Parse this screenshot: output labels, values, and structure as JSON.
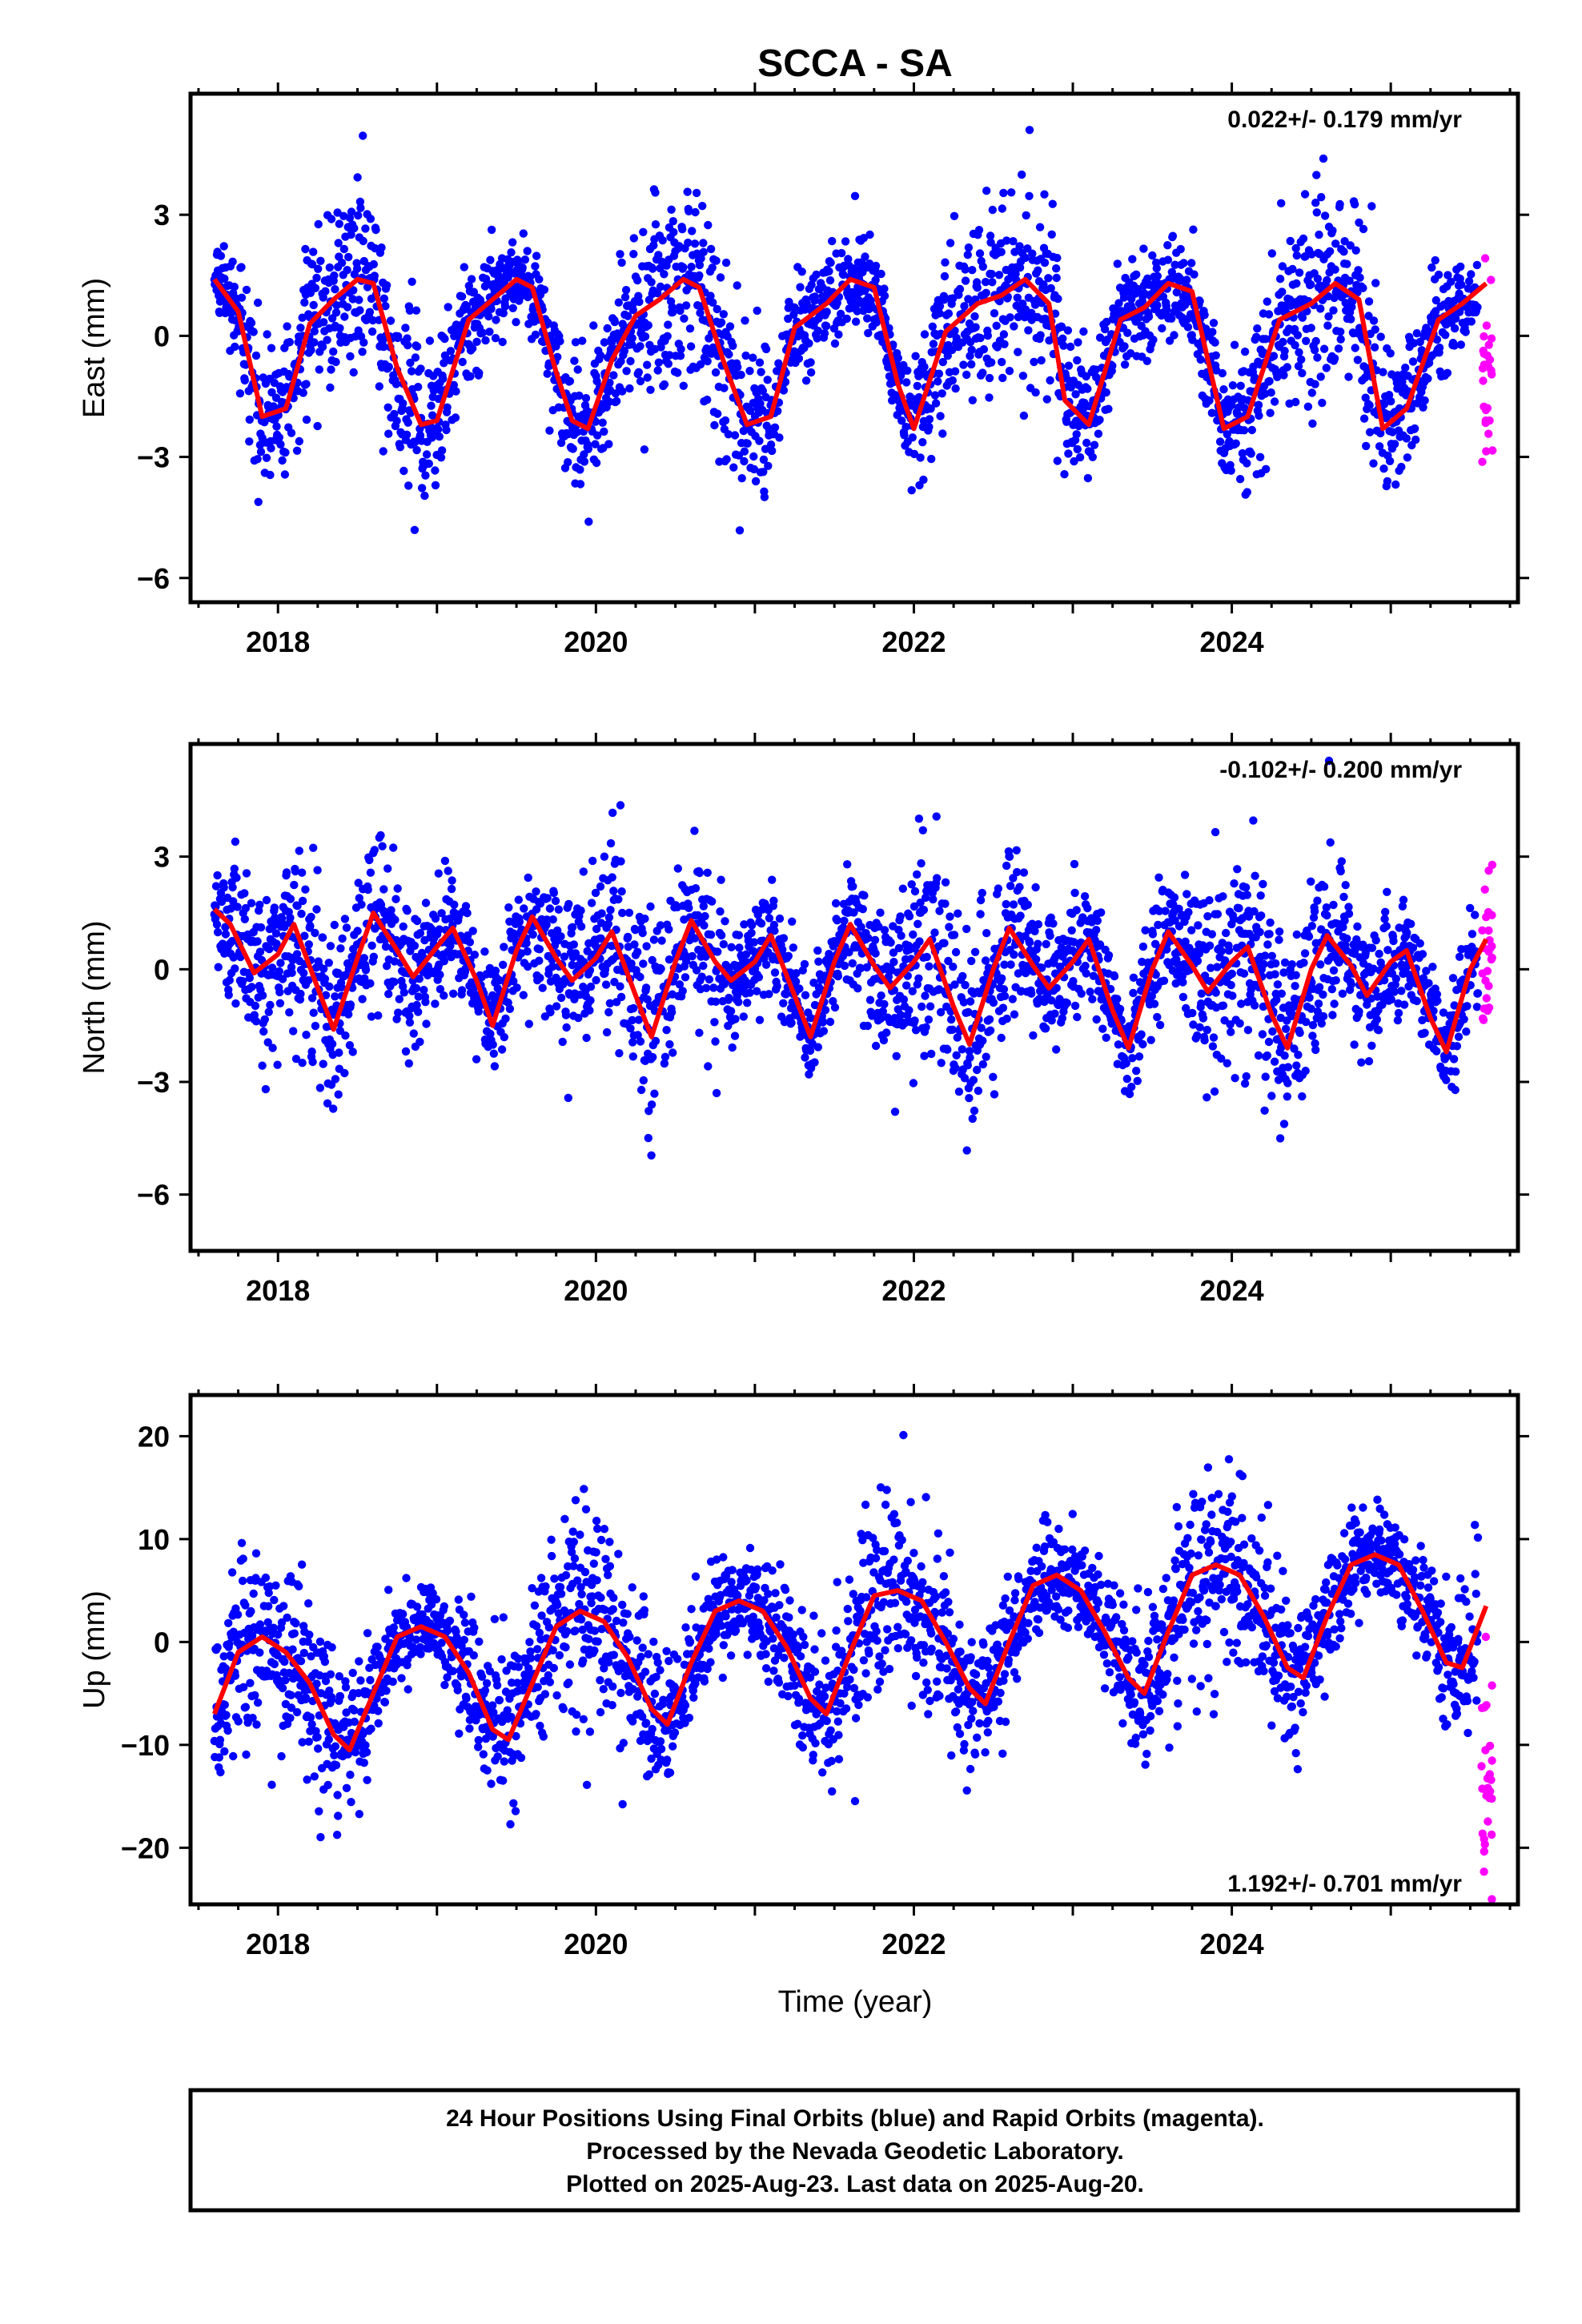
{
  "title": "SCCA - SA",
  "xlabel": "Time (year)",
  "footer": [
    "24 Hour Positions Using Final Orbits (blue) and Rapid Orbits (magenta).",
    "Processed by the Nevada Geodetic Laboratory.",
    "Plotted on 2025-Aug-23. Last data on 2025-Aug-20."
  ],
  "colors": {
    "final": "#0000ff",
    "rapid": "#ff00ff",
    "model": "#ff0000"
  },
  "chart_data": [
    {
      "type": "scatter",
      "ylabel": "East (mm)",
      "rate_label": "0.022+/- 0.179 mm/yr",
      "rate_position": "top-right",
      "xlim": [
        2017.45,
        2025.8
      ],
      "ylim": [
        -6.6,
        6.0
      ],
      "xticks": [
        2018,
        2020,
        2022,
        2024
      ],
      "xtick_labels": [
        "2018",
        "2020",
        "2022",
        "2024"
      ],
      "yticks": [
        -6,
        -3,
        0,
        3
      ],
      "ytick_labels": [
        "−6",
        "−3",
        "0",
        "3"
      ],
      "final_range": [
        2017.6,
        2025.55
      ],
      "rapid_range": [
        2025.57,
        2025.64
      ],
      "model": {
        "x": [
          2017.6,
          2017.75,
          2017.9,
          2018.05,
          2018.2,
          2018.35,
          2018.5,
          2018.6,
          2018.75,
          2018.9,
          2019.0,
          2019.2,
          2019.35,
          2019.5,
          2019.6,
          2019.75,
          2019.85,
          2019.95,
          2020.1,
          2020.25,
          2020.4,
          2020.55,
          2020.65,
          2020.8,
          2020.95,
          2021.1,
          2021.25,
          2021.45,
          2021.6,
          2021.75,
          2021.9,
          2022.0,
          2022.2,
          2022.4,
          2022.55,
          2022.7,
          2022.85,
          2022.95,
          2023.1,
          2023.3,
          2023.45,
          2023.6,
          2023.75,
          2023.95,
          2024.1,
          2024.3,
          2024.5,
          2024.65,
          2024.8,
          2024.95,
          2025.1,
          2025.3,
          2025.45,
          2025.6
        ],
        "y": [
          1.4,
          0.6,
          -2.0,
          -1.8,
          0.3,
          0.9,
          1.4,
          1.3,
          -0.8,
          -2.2,
          -2.1,
          0.4,
          0.9,
          1.4,
          1.2,
          -0.9,
          -2.1,
          -2.3,
          -0.6,
          0.5,
          0.9,
          1.4,
          1.2,
          -0.6,
          -2.2,
          -2.0,
          0.2,
          0.8,
          1.4,
          1.2,
          -1.2,
          -2.3,
          0.1,
          0.8,
          1.0,
          1.4,
          0.8,
          -1.6,
          -2.2,
          0.4,
          0.7,
          1.3,
          1.1,
          -2.3,
          -2.0,
          0.4,
          0.8,
          1.3,
          0.9,
          -2.3,
          -1.8,
          0.4,
          0.8,
          1.3
        ]
      },
      "noise_sd": 1.05,
      "trend": 0.022
    },
    {
      "type": "scatter",
      "ylabel": "North (mm)",
      "rate_label": "-0.102+/- 0.200 mm/yr",
      "rate_position": "top-right",
      "xlim": [
        2017.45,
        2025.8
      ],
      "ylim": [
        -7.5,
        6.0
      ],
      "xticks": [
        2018,
        2020,
        2022,
        2024
      ],
      "xtick_labels": [
        "2018",
        "2020",
        "2022",
        "2024"
      ],
      "yticks": [
        -6,
        -3,
        0,
        3
      ],
      "ytick_labels": [
        "−6",
        "−3",
        "0",
        "3"
      ],
      "final_range": [
        2017.6,
        2025.55
      ],
      "rapid_range": [
        2025.57,
        2025.64
      ],
      "model": {
        "x": [
          2017.6,
          2017.7,
          2017.85,
          2018.0,
          2018.1,
          2018.25,
          2018.35,
          2018.5,
          2018.6,
          2018.75,
          2018.85,
          2019.0,
          2019.1,
          2019.25,
          2019.35,
          2019.5,
          2019.6,
          2019.75,
          2019.85,
          2020.0,
          2020.1,
          2020.25,
          2020.35,
          2020.5,
          2020.6,
          2020.75,
          2020.85,
          2021.0,
          2021.1,
          2021.25,
          2021.35,
          2021.5,
          2021.6,
          2021.75,
          2021.85,
          2022.0,
          2022.1,
          2022.25,
          2022.35,
          2022.5,
          2022.6,
          2022.75,
          2022.85,
          2023.0,
          2023.1,
          2023.25,
          2023.35,
          2023.5,
          2023.6,
          2023.75,
          2023.85,
          2024.0,
          2024.1,
          2024.25,
          2024.35,
          2024.5,
          2024.6,
          2024.75,
          2024.85,
          2025.0,
          2025.1,
          2025.25,
          2025.35,
          2025.5,
          2025.6
        ],
        "y": [
          1.6,
          1.2,
          -0.1,
          0.4,
          1.2,
          -0.5,
          -1.6,
          0.3,
          1.5,
          0.5,
          -0.2,
          0.6,
          1.1,
          -0.3,
          -1.5,
          0.5,
          1.4,
          0.3,
          -0.3,
          0.3,
          1.0,
          -0.7,
          -1.8,
          0.2,
          1.3,
          0.2,
          -0.3,
          0.2,
          0.9,
          -0.7,
          -1.8,
          0.2,
          1.2,
          0.1,
          -0.5,
          0.2,
          0.8,
          -1.0,
          -2.0,
          0.0,
          1.1,
          0.1,
          -0.5,
          0.2,
          0.8,
          -1.1,
          -2.1,
          0.0,
          1.0,
          0.1,
          -0.6,
          0.2,
          0.6,
          -1.2,
          -2.1,
          0.0,
          0.9,
          0.1,
          -0.7,
          0.2,
          0.5,
          -1.3,
          -2.2,
          0.0,
          0.8
        ]
      },
      "noise_sd": 1.2,
      "trend": -0.102
    },
    {
      "type": "scatter",
      "ylabel": "Up (mm)",
      "rate_label": "1.192+/- 0.701 mm/yr",
      "rate_position": "bottom-right",
      "xlim": [
        2017.45,
        2025.8
      ],
      "ylim": [
        -25.5,
        24.0
      ],
      "xticks": [
        2018,
        2020,
        2022,
        2024
      ],
      "xtick_labels": [
        "2018",
        "2020",
        "2022",
        "2024"
      ],
      "yticks": [
        -20,
        -10,
        0,
        10,
        20
      ],
      "ytick_labels": [
        "−20",
        "−10",
        "0",
        "10",
        "20"
      ],
      "final_range": [
        2017.6,
        2025.55
      ],
      "rapid_range": [
        2025.57,
        2025.64
      ],
      "model": {
        "x": [
          2017.6,
          2017.75,
          2017.9,
          2018.05,
          2018.2,
          2018.35,
          2018.45,
          2018.6,
          2018.75,
          2018.9,
          2019.05,
          2019.2,
          2019.35,
          2019.45,
          2019.6,
          2019.75,
          2019.9,
          2020.05,
          2020.2,
          2020.35,
          2020.45,
          2020.6,
          2020.75,
          2020.9,
          2021.05,
          2021.2,
          2021.35,
          2021.45,
          2021.6,
          2021.75,
          2021.9,
          2022.05,
          2022.2,
          2022.35,
          2022.45,
          2022.6,
          2022.75,
          2022.9,
          2023.05,
          2023.2,
          2023.35,
          2023.45,
          2023.6,
          2023.75,
          2023.9,
          2024.05,
          2024.2,
          2024.35,
          2024.45,
          2024.6,
          2024.75,
          2024.9,
          2025.05,
          2025.2,
          2025.35,
          2025.45,
          2025.6
        ],
        "y": [
          -7.0,
          -1.0,
          0.5,
          -1.0,
          -4.0,
          -9.0,
          -10.5,
          -5.0,
          0.5,
          1.5,
          0.5,
          -3.0,
          -8.5,
          -9.5,
          -4.0,
          1.5,
          3.0,
          2.0,
          -1.5,
          -6.5,
          -8.0,
          -2.0,
          3.0,
          4.0,
          3.0,
          -0.5,
          -5.5,
          -7.0,
          -1.0,
          4.5,
          5.0,
          4.0,
          0.0,
          -4.5,
          -6.0,
          0.0,
          5.5,
          6.5,
          5.0,
          1.0,
          -3.5,
          -5.0,
          1.0,
          6.5,
          7.5,
          6.5,
          2.5,
          -2.5,
          -3.5,
          2.5,
          7.5,
          8.5,
          7.5,
          3.0,
          -2.0,
          -2.5,
          3.5
        ]
      },
      "noise_sd": 4.2,
      "trend": 1.192,
      "rapid_offset": -13.0
    }
  ]
}
